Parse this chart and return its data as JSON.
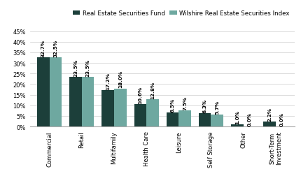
{
  "categories": [
    "Commercial",
    "Retail",
    "Multifamily",
    "Health Care",
    "Leisure",
    "Self Storage",
    "Other",
    "Short-Term\nInvestment"
  ],
  "fund_values": [
    32.7,
    23.5,
    17.2,
    10.6,
    6.5,
    6.3,
    1.0,
    2.2
  ],
  "index_values": [
    32.5,
    23.5,
    18.0,
    12.8,
    7.5,
    5.7,
    0.0,
    0.0
  ],
  "fund_labels": [
    "32.7%",
    "23.5%",
    "17.2%",
    "10.6%",
    "6.5%",
    "6.3%",
    "1.0%",
    "2.2%"
  ],
  "index_labels": [
    "32.5%",
    "23.5%",
    "18.0%",
    "12.8%",
    "7.5%",
    "5.7%",
    "0.0%",
    "0.0%"
  ],
  "fund_color": "#1c3f3a",
  "index_color": "#6ea8a0",
  "legend_labels": [
    "Real Estate Securities Fund",
    "Wilshire Real Estate Securities Index"
  ],
  "ylim": [
    0,
    45
  ],
  "yticks": [
    0,
    5,
    10,
    15,
    20,
    25,
    30,
    35,
    40,
    45
  ],
  "bar_width": 0.38,
  "label_fontsize": 5.2,
  "tick_fontsize": 6.0,
  "legend_fontsize": 6.2,
  "background_color": "#ffffff"
}
